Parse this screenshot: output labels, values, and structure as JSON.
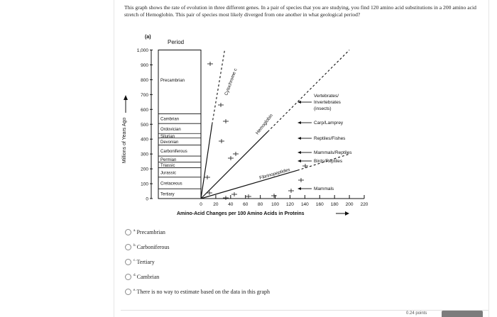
{
  "question": {
    "text": "This graph shows the rate of evolution in three different genes.  In a pair of species that you are studying, you find 120 amino acid substitutions in a 200 amino acid stretch of Hemoglobin.  This pair of species most likely diverged from one another in what geological period?"
  },
  "figure": {
    "panel_label": "(a)",
    "period_header": "Period",
    "y_axis_label": "Millions of Years Ago",
    "x_axis_label": "Amino-Acid Changes per 100 Amino Acids in Proteins",
    "y_ticks": [
      "0",
      "100",
      "200",
      "300",
      "400",
      "500",
      "600",
      "700",
      "800",
      "900",
      "1,000"
    ],
    "x_ticks": [
      "0",
      "20",
      "40",
      "60",
      "80",
      "100",
      "120",
      "140",
      "160",
      "180",
      "200",
      "220"
    ],
    "periods": [
      "Precambrian",
      "Cambrian",
      "Ordovician",
      "Silurian",
      "Devonian",
      "Carboniferous",
      "Permian",
      "Triassic",
      "Jurassic",
      "Cretaceous",
      "Tertiary"
    ],
    "genes": [
      "Cytochrome c",
      "Hemoglobin",
      "Fibrinopeptides"
    ],
    "divergences": [
      "Vertebrates/",
      "Invertebrates",
      "(insects)",
      "Carp/Lamprey",
      "Reptiles/Fishes",
      "Mammals/Reptiles",
      "Birds/Reptiles",
      "Mammals"
    ]
  },
  "options": [
    {
      "letter": "a.",
      "label": "Precambrian"
    },
    {
      "letter": "b.",
      "label": "Carboniferous"
    },
    {
      "letter": "c.",
      "label": "Tertiary"
    },
    {
      "letter": "d.",
      "label": "Cambrian"
    },
    {
      "letter": "e.",
      "label": "There is no way to estimate based on the data in this graph"
    }
  ],
  "footer": {
    "points_text": "0.24 points"
  },
  "chart_data": {
    "type": "line",
    "title": "",
    "xlabel": "Amino-Acid Changes per 100 Amino Acids in Proteins",
    "ylabel": "Millions of Years Ago",
    "xlim": [
      0,
      220
    ],
    "ylim": [
      0,
      1000
    ],
    "series": [
      {
        "name": "Cytochrome c",
        "x": [
          0,
          15,
          32
        ],
        "y": [
          0,
          500,
          1000
        ]
      },
      {
        "name": "Hemoglobin",
        "x": [
          0,
          90,
          200
        ],
        "y": [
          0,
          450,
          1000
        ]
      },
      {
        "name": "Fibrinopeptides",
        "x": [
          0,
          130,
          200
        ],
        "y": [
          0,
          190,
          300
        ]
      }
    ]
  }
}
